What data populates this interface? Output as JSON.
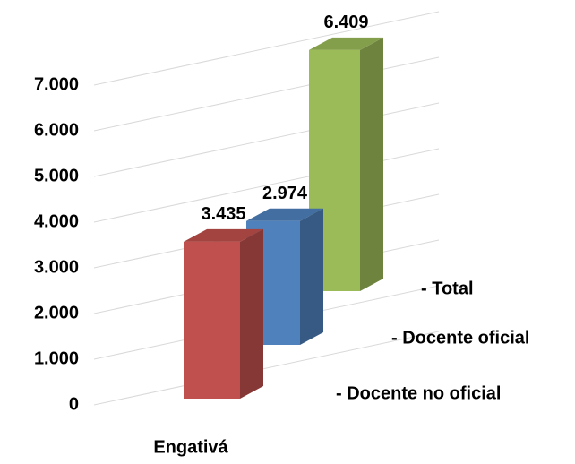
{
  "chart_data": {
    "type": "bar3d",
    "categories": [
      "Engativá"
    ],
    "series": [
      {
        "name": "- Docente no oficial",
        "color": "#c0504d",
        "values": [
          3435
        ],
        "value_labels": [
          "3.435"
        ]
      },
      {
        "name": "- Docente oficial",
        "color": "#4f81bd",
        "values": [
          2974
        ],
        "value_labels": [
          "2.974"
        ]
      },
      {
        "name": "- Total",
        "color": "#9bbb59",
        "values": [
          6409
        ],
        "value_labels": [
          "6.409"
        ]
      }
    ],
    "ylim": [
      0,
      8000
    ],
    "yticks": [
      0,
      {
        "value": 1000,
        "label": "1.000"
      },
      {
        "value": 2000,
        "label": "2.000"
      },
      {
        "value": 3000,
        "label": "3.000"
      },
      {
        "value": 4000,
        "label": "4.000"
      },
      {
        "value": 5000,
        "label": "5.000"
      },
      {
        "value": 6000,
        "label": "6.000"
      },
      {
        "value": 7000,
        "label": "7.000"
      }
    ],
    "grid": true
  }
}
